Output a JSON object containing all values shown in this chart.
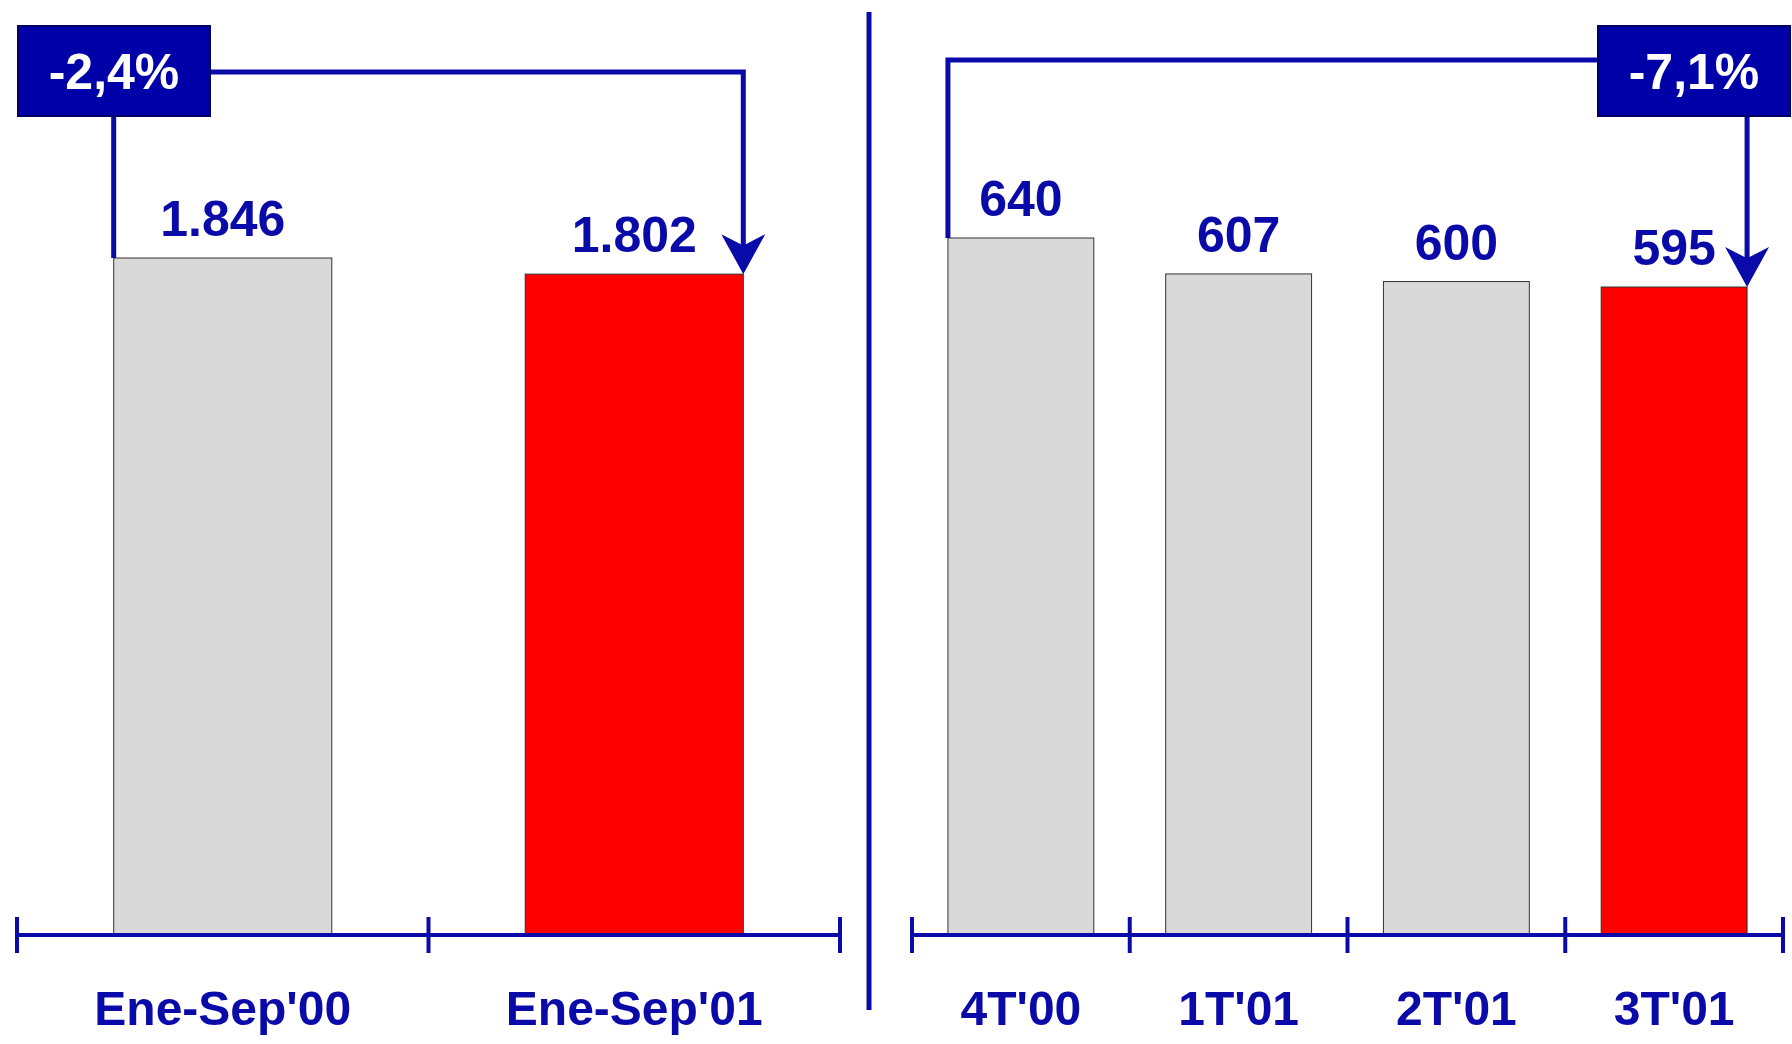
{
  "chart_data": [
    {
      "type": "bar",
      "categories": [
        "Ene-Sep'00",
        "Ene-Sep'01"
      ],
      "values": [
        1846,
        1802
      ],
      "value_labels": [
        "1.846",
        "1.802"
      ],
      "colors": [
        "#d9d9d9",
        "#ff0000"
      ],
      "annotations": [
        "-2,4%"
      ]
    },
    {
      "type": "bar",
      "categories": [
        "4T'00",
        "1T'01",
        "2T'01",
        "3T'01"
      ],
      "values": [
        640,
        607,
        600,
        595
      ],
      "colors": [
        "#d9d9d9",
        "#d9d9d9",
        "#d9d9d9",
        "#ff0000"
      ],
      "data_labels": true,
      "annotations": [
        "-7,1%"
      ]
    }
  ]
}
